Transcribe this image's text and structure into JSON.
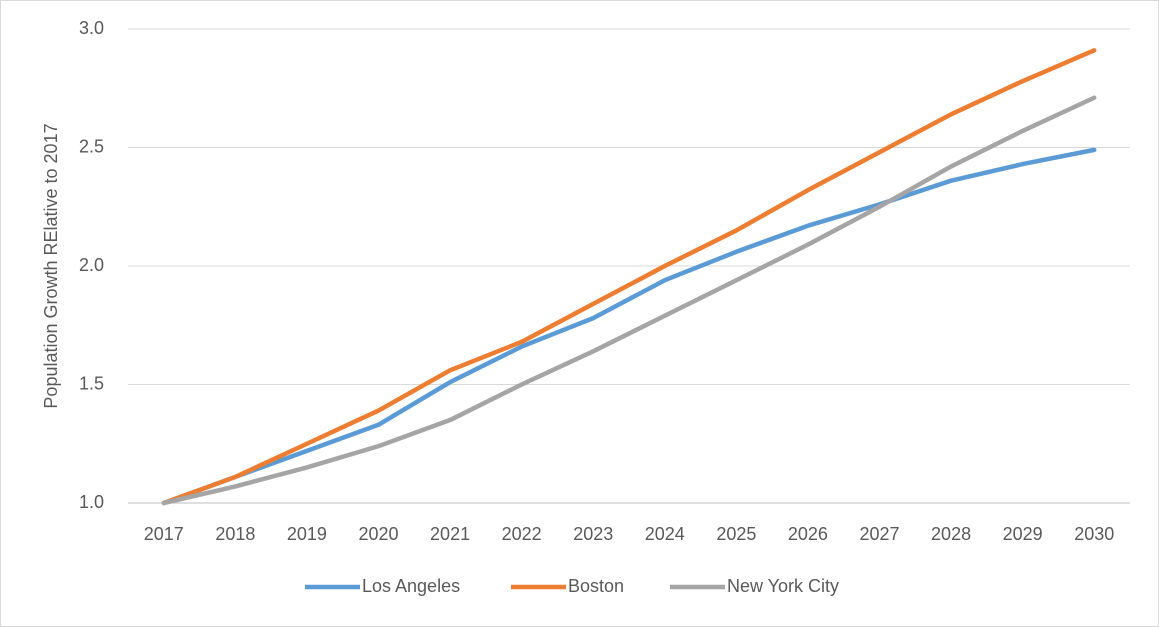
{
  "chart_data": {
    "type": "line",
    "y_label": "Population Growth RElative to 2017",
    "categories": [
      "2017",
      "2018",
      "2019",
      "2020",
      "2021",
      "2022",
      "2023",
      "2024",
      "2025",
      "2026",
      "2027",
      "2028",
      "2029",
      "2030"
    ],
    "series": [
      {
        "name": "Los Angeles",
        "color": "#5b9bd5",
        "values": [
          1.0,
          1.11,
          1.22,
          1.33,
          1.51,
          1.66,
          1.78,
          1.94,
          2.06,
          2.17,
          2.26,
          2.36,
          2.43,
          2.49
        ]
      },
      {
        "name": "Boston",
        "color": "#ed7d31",
        "values": [
          1.0,
          1.11,
          1.25,
          1.39,
          1.56,
          1.68,
          1.84,
          2.0,
          2.15,
          2.32,
          2.48,
          2.64,
          2.78,
          2.91
        ]
      },
      {
        "name": "New York City",
        "color": "#a5a5a5",
        "values": [
          1.0,
          1.07,
          1.15,
          1.24,
          1.35,
          1.5,
          1.64,
          1.79,
          1.94,
          2.09,
          2.25,
          2.42,
          2.57,
          2.71
        ]
      }
    ],
    "ylim": [
      1.0,
      3.0
    ],
    "yticks": [
      {
        "value": 1,
        "label": "1.0"
      },
      1.5,
      {
        "value": 2,
        "label": "2.0"
      },
      2.5,
      {
        "value": 3,
        "label": "3.0"
      }
    ],
    "grid": true,
    "legend": "bottom"
  }
}
